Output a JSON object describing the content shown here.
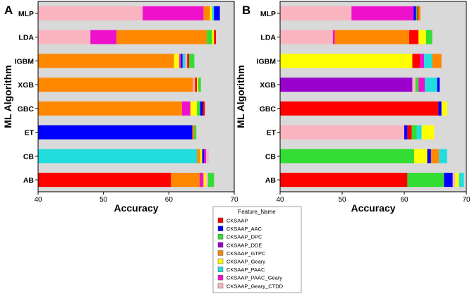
{
  "legend": {
    "title": "Feature_Name",
    "entries": [
      {
        "name": "CKSAAP",
        "color": "#ff0000"
      },
      {
        "name": "CKSAAP_AAC",
        "color": "#0000ff"
      },
      {
        "name": "CKSAAP_DPC",
        "color": "#33dd33"
      },
      {
        "name": "CKSAAP_DDE",
        "color": "#9900cc"
      },
      {
        "name": "CKSAAP_GTPC",
        "color": "#ff8800"
      },
      {
        "name": "CKSAAP_Geary",
        "color": "#ffff00"
      },
      {
        "name": "CKSAAP_PAAC",
        "color": "#22dddd"
      },
      {
        "name": "CKSAAP_PAAC_Geary",
        "color": "#ee11cc"
      },
      {
        "name": "CKSAAP_Geary_CTDD",
        "color": "#f9b4c0"
      }
    ]
  },
  "chart_data": [
    {
      "panel": "A",
      "type": "bar",
      "orientation": "horizontal",
      "stacked": true,
      "xlabel": "Accuracy",
      "ylabel": "ML Algorithm",
      "xlim": [
        40,
        70
      ],
      "xticks": [
        40,
        50,
        60,
        70
      ],
      "categories": [
        "MLP",
        "LDA",
        "IGBM",
        "XGB",
        "GBC",
        "ET",
        "CB",
        "AB"
      ],
      "bars": [
        {
          "category": "MLP",
          "segments": [
            {
              "feature": "CKSAAP_Geary_CTDD",
              "start": 40,
              "end": 56.0
            },
            {
              "feature": "CKSAAP_PAAC_Geary",
              "start": 56.0,
              "end": 65.3
            },
            {
              "feature": "CKSAAP_GTPC",
              "start": 65.3,
              "end": 66.3
            },
            {
              "feature": "CKSAAP_Geary",
              "start": 66.3,
              "end": 66.6
            },
            {
              "feature": "CKSAAP_PAAC",
              "start": 66.6,
              "end": 66.9
            },
            {
              "feature": "CKSAAP_AAC",
              "start": 66.9,
              "end": 67.8
            }
          ]
        },
        {
          "category": "LDA",
          "segments": [
            {
              "feature": "CKSAAP_Geary_CTDD",
              "start": 40,
              "end": 48.0
            },
            {
              "feature": "CKSAAP_PAAC_Geary",
              "start": 48.0,
              "end": 52.0
            },
            {
              "feature": "CKSAAP_GTPC",
              "start": 52.0,
              "end": 65.8
            },
            {
              "feature": "CKSAAP_DPC",
              "start": 65.8,
              "end": 66.6
            },
            {
              "feature": "CKSAAP_Geary",
              "start": 66.6,
              "end": 66.9
            },
            {
              "feature": "CKSAAP",
              "start": 66.9,
              "end": 67.2
            }
          ]
        },
        {
          "category": "IGBM",
          "segments": [
            {
              "feature": "CKSAAP_GTPC",
              "start": 40,
              "end": 60.8
            },
            {
              "feature": "CKSAAP_Geary",
              "start": 60.8,
              "end": 61.6
            },
            {
              "feature": "CKSAAP_PAAC_Geary",
              "start": 61.6,
              "end": 61.9
            },
            {
              "feature": "CKSAAP_AAC",
              "start": 61.9,
              "end": 62.1
            },
            {
              "feature": "CKSAAP_PAAC",
              "start": 62.1,
              "end": 62.5
            },
            {
              "feature": "CKSAAP_Geary_CTDD",
              "start": 62.5,
              "end": 62.8
            },
            {
              "feature": "CKSAAP",
              "start": 62.8,
              "end": 63.1
            },
            {
              "feature": "CKSAAP_DPC",
              "start": 63.1,
              "end": 63.9
            }
          ]
        },
        {
          "category": "XGB",
          "segments": [
            {
              "feature": "CKSAAP_GTPC",
              "start": 40,
              "end": 63.7
            },
            {
              "feature": "CKSAAP_Geary_CTDD",
              "start": 63.7,
              "end": 64.0
            },
            {
              "feature": "CKSAAP",
              "start": 64.0,
              "end": 64.3
            },
            {
              "feature": "CKSAAP_Geary",
              "start": 64.3,
              "end": 64.5
            },
            {
              "feature": "CKSAAP_DPC",
              "start": 64.5,
              "end": 64.9
            }
          ]
        },
        {
          "category": "GBC",
          "segments": [
            {
              "feature": "CKSAAP_GTPC",
              "start": 40,
              "end": 62.0
            },
            {
              "feature": "CKSAAP_PAAC_Geary",
              "start": 62.0,
              "end": 63.3
            },
            {
              "feature": "CKSAAP_Geary",
              "start": 63.3,
              "end": 64.3
            },
            {
              "feature": "CKSAAP_DPC",
              "start": 64.3,
              "end": 64.8
            },
            {
              "feature": "CKSAAP_AAC",
              "start": 64.8,
              "end": 65.2
            },
            {
              "feature": "CKSAAP",
              "start": 65.2,
              "end": 65.5
            }
          ]
        },
        {
          "category": "ET",
          "segments": [
            {
              "feature": "CKSAAP_AAC",
              "start": 40,
              "end": 63.6
            },
            {
              "feature": "CKSAAP_GTPC",
              "start": 63.6,
              "end": 63.9
            },
            {
              "feature": "CKSAAP_DPC",
              "start": 63.9,
              "end": 64.2
            }
          ]
        },
        {
          "category": "CB",
          "segments": [
            {
              "feature": "CKSAAP_PAAC",
              "start": 40,
              "end": 64.3
            },
            {
              "feature": "CKSAAP_GTPC",
              "start": 64.3,
              "end": 64.8
            },
            {
              "feature": "CKSAAP_Geary",
              "start": 64.8,
              "end": 65.1
            },
            {
              "feature": "CKSAAP_AAC",
              "start": 65.1,
              "end": 65.4
            },
            {
              "feature": "CKSAAP_PAAC_Geary",
              "start": 65.4,
              "end": 65.7
            },
            {
              "feature": "CKSAAP_Geary_CTDD",
              "start": 65.7,
              "end": 66.1
            }
          ]
        },
        {
          "category": "AB",
          "segments": [
            {
              "feature": "CKSAAP",
              "start": 40,
              "end": 60.3
            },
            {
              "feature": "CKSAAP_GTPC",
              "start": 60.3,
              "end": 64.7
            },
            {
              "feature": "CKSAAP_PAAC_Geary",
              "start": 64.7,
              "end": 65.3
            },
            {
              "feature": "CKSAAP_Geary",
              "start": 65.3,
              "end": 65.7
            },
            {
              "feature": "CKSAAP_Geary_CTDD",
              "start": 65.7,
              "end": 66.0
            },
            {
              "feature": "CKSAAP_DPC",
              "start": 66.0,
              "end": 66.9
            }
          ]
        }
      ]
    },
    {
      "panel": "B",
      "type": "bar",
      "orientation": "horizontal",
      "stacked": true,
      "xlabel": "Accuracy",
      "ylabel": "ML Algorithm",
      "xlim": [
        40,
        70
      ],
      "xticks": [
        40,
        50,
        60,
        70
      ],
      "categories": [
        "MLP",
        "LDA",
        "IGBM",
        "XGB",
        "GBC",
        "ET",
        "CB",
        "AB"
      ],
      "bars": [
        {
          "category": "MLP",
          "segments": [
            {
              "feature": "CKSAAP_Geary_CTDD",
              "start": 40,
              "end": 51.5
            },
            {
              "feature": "CKSAAP_PAAC_Geary",
              "start": 51.5,
              "end": 61.5
            },
            {
              "feature": "CKSAAP_AAC",
              "start": 61.5,
              "end": 61.9
            },
            {
              "feature": "CKSAAP_DPC",
              "start": 61.9,
              "end": 62.1
            },
            {
              "feature": "CKSAAP",
              "start": 62.1,
              "end": 62.3
            },
            {
              "feature": "CKSAAP_GTPC",
              "start": 62.3,
              "end": 62.6
            }
          ]
        },
        {
          "category": "LDA",
          "segments": [
            {
              "feature": "CKSAAP_Geary_CTDD",
              "start": 40,
              "end": 48.5
            },
            {
              "feature": "CKSAAP_PAAC_Geary",
              "start": 48.5,
              "end": 48.8
            },
            {
              "feature": "CKSAAP_GTPC",
              "start": 48.8,
              "end": 60.8
            },
            {
              "feature": "CKSAAP",
              "start": 60.8,
              "end": 62.3
            },
            {
              "feature": "CKSAAP_Geary",
              "start": 62.3,
              "end": 63.5
            },
            {
              "feature": "CKSAAP_DPC",
              "start": 63.5,
              "end": 64.5
            }
          ]
        },
        {
          "category": "IGBM",
          "segments": [
            {
              "feature": "CKSAAP_Geary",
              "start": 40,
              "end": 61.3
            },
            {
              "feature": "CKSAAP",
              "start": 61.3,
              "end": 62.5
            },
            {
              "feature": "CKSAAP_PAAC_Geary",
              "start": 62.5,
              "end": 63.2
            },
            {
              "feature": "CKSAAP_PAAC",
              "start": 63.2,
              "end": 64.5
            },
            {
              "feature": "CKSAAP_GTPC",
              "start": 64.5,
              "end": 66.0
            }
          ]
        },
        {
          "category": "XGB",
          "segments": [
            {
              "feature": "CKSAAP_DDE",
              "start": 40,
              "end": 61.3
            },
            {
              "feature": "CKSAAP_Geary_CTDD",
              "start": 61.3,
              "end": 61.8
            },
            {
              "feature": "CKSAAP_DPC",
              "start": 61.8,
              "end": 62.3
            },
            {
              "feature": "CKSAAP_PAAC_Geary",
              "start": 62.3,
              "end": 63.3
            },
            {
              "feature": "CKSAAP_PAAC",
              "start": 63.3,
              "end": 65.3
            },
            {
              "feature": "CKSAAP_AAC",
              "start": 65.3,
              "end": 65.7
            }
          ]
        },
        {
          "category": "GBC",
          "segments": [
            {
              "feature": "CKSAAP",
              "start": 40,
              "end": 65.5
            },
            {
              "feature": "CKSAAP_AAC",
              "start": 65.5,
              "end": 66.0
            },
            {
              "feature": "CKSAAP_Geary",
              "start": 66.0,
              "end": 66.9
            }
          ]
        },
        {
          "category": "ET",
          "segments": [
            {
              "feature": "CKSAAP_Geary_CTDD",
              "start": 40,
              "end": 60.0
            },
            {
              "feature": "CKSAAP_AAC",
              "start": 60.0,
              "end": 60.5
            },
            {
              "feature": "CKSAAP",
              "start": 60.5,
              "end": 61.2
            },
            {
              "feature": "CKSAAP_DPC",
              "start": 61.2,
              "end": 62.0
            },
            {
              "feature": "CKSAAP_PAAC",
              "start": 62.0,
              "end": 62.8
            },
            {
              "feature": "CKSAAP_Geary",
              "start": 62.8,
              "end": 64.8
            }
          ]
        },
        {
          "category": "CB",
          "segments": [
            {
              "feature": "CKSAAP_DPC",
              "start": 40,
              "end": 61.6
            },
            {
              "feature": "CKSAAP_Geary",
              "start": 61.6,
              "end": 63.7
            },
            {
              "feature": "CKSAAP_AAC",
              "start": 63.7,
              "end": 64.3
            },
            {
              "feature": "CKSAAP_GTPC",
              "start": 64.3,
              "end": 65.6
            },
            {
              "feature": "CKSAAP_PAAC",
              "start": 65.6,
              "end": 66.9
            }
          ]
        },
        {
          "category": "AB",
          "segments": [
            {
              "feature": "CKSAAP",
              "start": 40,
              "end": 60.5
            },
            {
              "feature": "CKSAAP_DPC",
              "start": 60.5,
              "end": 66.4
            },
            {
              "feature": "CKSAAP_AAC",
              "start": 66.4,
              "end": 67.8
            },
            {
              "feature": "CKSAAP_Geary_CTDD",
              "start": 67.8,
              "end": 68.2
            },
            {
              "feature": "CKSAAP_Geary",
              "start": 68.2,
              "end": 68.8
            },
            {
              "feature": "CKSAAP_PAAC",
              "start": 68.8,
              "end": 69.6
            }
          ]
        }
      ]
    }
  ]
}
